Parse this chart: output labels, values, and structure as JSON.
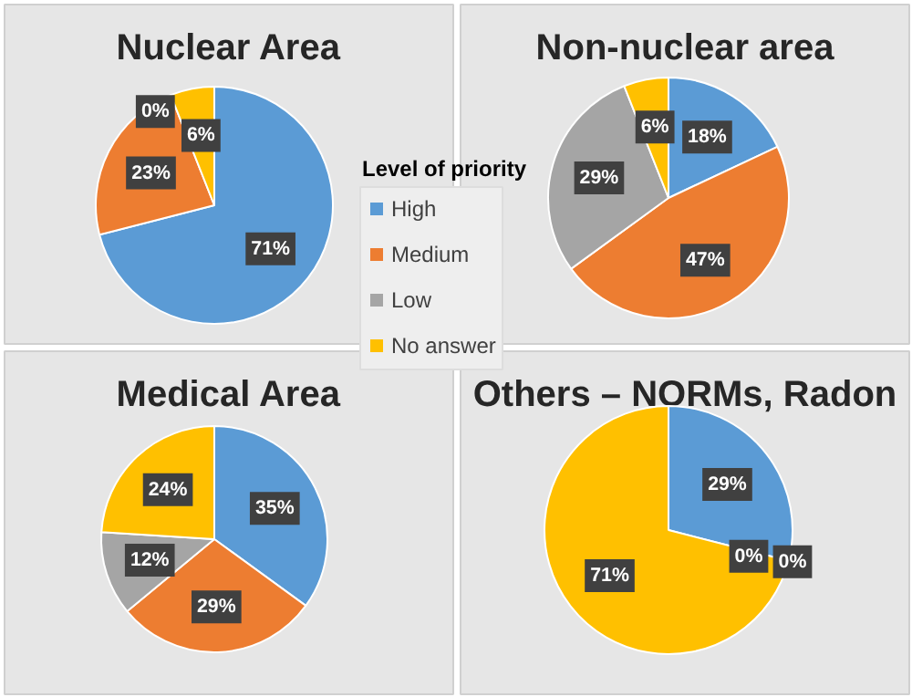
{
  "chart_data": [
    {
      "type": "pie",
      "title": "Nuclear Area",
      "categories": [
        "High",
        "Medium",
        "Low",
        "No answer"
      ],
      "values": [
        71,
        23,
        0,
        6
      ],
      "colors": [
        "#5b9bd5",
        "#ed7d31",
        "#a5a5a5",
        "#ffc000"
      ],
      "value_labels": [
        "71%",
        "23%",
        "0%",
        "6%"
      ],
      "legend": "right",
      "legend_title": "Level of priority"
    },
    {
      "type": "pie",
      "title": "Non-nuclear area",
      "categories": [
        null,
        null,
        null,
        null
      ],
      "values": [
        18,
        47,
        29,
        6
      ],
      "colors": [
        "#5b9bd5",
        "#ed7d31",
        "#a5a5a5",
        "#ffc000"
      ],
      "value_labels": [
        "18%",
        "47%",
        "29%",
        "6%"
      ]
    },
    {
      "type": "pie",
      "title": "Medical Area",
      "categories": [
        null,
        null,
        null,
        null
      ],
      "values": [
        35,
        29,
        12,
        24
      ],
      "colors": [
        "#5b9bd5",
        "#ed7d31",
        "#a5a5a5",
        "#ffc000"
      ],
      "value_labels": [
        "35%",
        "29%",
        "12%",
        "24%"
      ]
    },
    {
      "type": "pie",
      "title": "Others – NORMs, Radon",
      "categories": [
        null,
        null,
        null,
        null
      ],
      "values": [
        29,
        0,
        0,
        71
      ],
      "colors": [
        "#5b9bd5",
        "#ed7d31",
        "#a5a5a5",
        "#ffc000"
      ],
      "value_labels": [
        "29%",
        "0%",
        "0%",
        "71%"
      ]
    }
  ]
}
